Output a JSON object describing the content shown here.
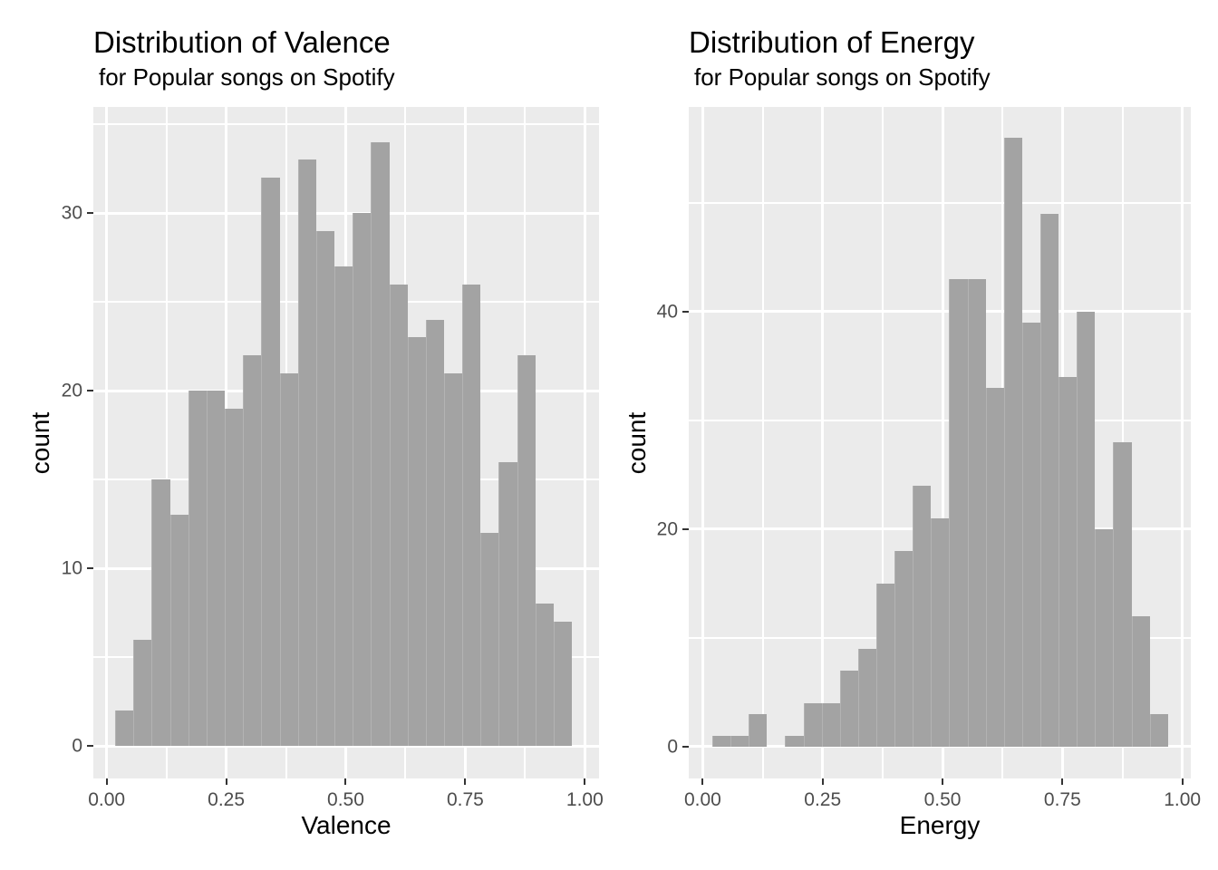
{
  "style": {
    "page_bg": "#FFFFFF",
    "panel_bg": "#EBEBEB",
    "grid_color": "#FFFFFF",
    "bar_fill": "#A3A3A3",
    "tick_label_color": "#4D4D4D",
    "tick_mark_color": "#333333",
    "text_color": "#000000"
  },
  "chart_data": [
    {
      "type": "bar",
      "variant": "histogram",
      "title": "Distribution of Valence",
      "subtitle": "for Popular songs on Spotify",
      "xlabel": "Valence",
      "ylabel": "count",
      "bin_start": 0.018,
      "bin_width": 0.0382,
      "counts": [
        2,
        6,
        15,
        13,
        20,
        20,
        19,
        22,
        32,
        21,
        33,
        29,
        27,
        30,
        34,
        26,
        23,
        24,
        21,
        26,
        12,
        16,
        22,
        8,
        7
      ],
      "total_count": 508,
      "x_ticks": {
        "values": [
          0,
          0.25,
          0.5,
          0.75,
          1
        ],
        "labels": [
          "0.00",
          "0.25",
          "0.50",
          "0.75",
          "1.00"
        ]
      },
      "y_ticks": {
        "values": [
          0,
          10,
          20,
          30
        ],
        "labels": [
          "0",
          "10",
          "20",
          "30"
        ]
      },
      "x_minor": [
        0.125,
        0.375,
        0.625,
        0.875
      ],
      "y_minor": [
        5,
        15,
        25,
        35
      ],
      "xlim": [
        -0.0278,
        1.0297
      ],
      "ylim": [
        -1.82,
        35.98
      ],
      "grid": true,
      "legend": "none"
    },
    {
      "type": "bar",
      "variant": "histogram",
      "title": "Distribution of Energy",
      "subtitle": "for Popular songs on Spotify",
      "xlabel": "Energy",
      "ylabel": "count",
      "bin_start": 0.02,
      "bin_width": 0.038,
      "counts": [
        1,
        1,
        3,
        0,
        1,
        4,
        4,
        7,
        9,
        15,
        18,
        24,
        21,
        43,
        43,
        33,
        56,
        39,
        49,
        34,
        40,
        20,
        28,
        12,
        3
      ],
      "total_count": 508,
      "x_ticks": {
        "values": [
          0,
          0.25,
          0.5,
          0.75,
          1
        ],
        "labels": [
          "0.00",
          "0.25",
          "0.50",
          "0.75",
          "1.00"
        ]
      },
      "y_ticks": {
        "values": [
          0,
          20,
          40
        ],
        "labels": [
          "0",
          "20",
          "40"
        ]
      },
      "x_minor": [
        0.125,
        0.375,
        0.625,
        0.875
      ],
      "y_minor": [
        10,
        30,
        50
      ],
      "xlim": [
        -0.0291,
        1.0176
      ],
      "ylim": [
        -2.92,
        58.83
      ],
      "grid": true,
      "legend": "none"
    }
  ]
}
